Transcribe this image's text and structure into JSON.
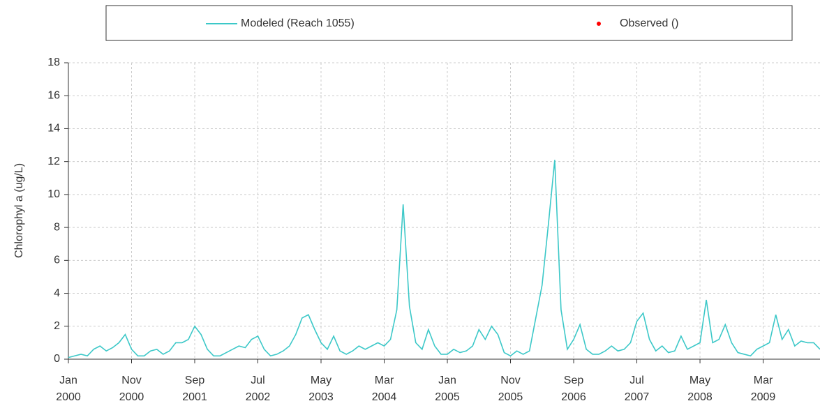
{
  "chart_data": {
    "type": "line",
    "ylabel": "Chlorophyl a (ug/L)",
    "x": [
      "2000-01",
      "2000-02",
      "2000-03",
      "2000-04",
      "2000-05",
      "2000-06",
      "2000-07",
      "2000-08",
      "2000-09",
      "2000-10",
      "2000-11",
      "2000-12",
      "2001-01",
      "2001-02",
      "2001-03",
      "2001-04",
      "2001-05",
      "2001-06",
      "2001-07",
      "2001-08",
      "2001-09",
      "2001-10",
      "2001-11",
      "2001-12",
      "2002-01",
      "2002-02",
      "2002-03",
      "2002-04",
      "2002-05",
      "2002-06",
      "2002-07",
      "2002-08",
      "2002-09",
      "2002-10",
      "2002-11",
      "2002-12",
      "2003-01",
      "2003-02",
      "2003-03",
      "2003-04",
      "2003-05",
      "2003-06",
      "2003-07",
      "2003-08",
      "2003-09",
      "2003-10",
      "2003-11",
      "2003-12",
      "2004-01",
      "2004-02",
      "2004-03",
      "2004-04",
      "2004-05",
      "2004-06",
      "2004-07",
      "2004-08",
      "2004-09",
      "2004-10",
      "2004-11",
      "2004-12",
      "2005-01",
      "2005-02",
      "2005-03",
      "2005-04",
      "2005-05",
      "2005-06",
      "2005-07",
      "2005-08",
      "2005-09",
      "2005-10",
      "2005-11",
      "2005-12",
      "2006-01",
      "2006-02",
      "2006-03",
      "2006-04",
      "2006-05",
      "2006-06",
      "2006-07",
      "2006-08",
      "2006-09",
      "2006-10",
      "2006-11",
      "2006-12",
      "2007-01",
      "2007-02",
      "2007-03",
      "2007-04",
      "2007-05",
      "2007-06",
      "2007-07",
      "2007-08",
      "2007-09",
      "2007-10",
      "2007-11",
      "2007-12",
      "2008-01",
      "2008-02",
      "2008-03",
      "2008-04",
      "2008-05",
      "2008-06",
      "2008-07",
      "2008-08",
      "2008-09",
      "2008-10",
      "2008-11",
      "2008-12",
      "2009-01",
      "2009-02",
      "2009-03",
      "2009-04",
      "2009-05",
      "2009-06",
      "2009-07",
      "2009-08",
      "2009-09",
      "2009-10",
      "2009-11",
      "2009-12"
    ],
    "series": [
      {
        "name": "Modeled (Reach 1055)",
        "color": "#3cc8c8",
        "values": [
          0.1,
          0.2,
          0.3,
          0.2,
          0.6,
          0.8,
          0.5,
          0.7,
          1.0,
          1.5,
          0.6,
          0.2,
          0.2,
          0.5,
          0.6,
          0.3,
          0.5,
          1.0,
          1.0,
          1.2,
          2.0,
          1.5,
          0.6,
          0.2,
          0.2,
          0.4,
          0.6,
          0.8,
          0.7,
          1.2,
          1.4,
          0.6,
          0.2,
          0.3,
          0.5,
          0.8,
          1.5,
          2.5,
          2.7,
          1.8,
          1.0,
          0.6,
          1.4,
          0.5,
          0.3,
          0.5,
          0.8,
          0.6,
          0.8,
          1.0,
          0.8,
          1.2,
          3.0,
          9.4,
          3.2,
          1.0,
          0.6,
          1.8,
          0.8,
          0.3,
          0.3,
          0.6,
          0.4,
          0.5,
          0.8,
          1.8,
          1.2,
          2.0,
          1.5,
          0.4,
          0.2,
          0.5,
          0.3,
          0.5,
          2.5,
          4.5,
          8.2,
          12.1,
          3.0,
          0.6,
          1.2,
          2.1,
          0.6,
          0.3,
          0.3,
          0.5,
          0.8,
          0.5,
          0.6,
          1.0,
          2.3,
          2.8,
          1.2,
          0.5,
          0.8,
          0.4,
          0.5,
          1.4,
          0.6,
          0.8,
          1.0,
          3.6,
          1.0,
          1.2,
          2.1,
          1.0,
          0.4,
          0.3,
          0.2,
          0.6,
          0.8,
          1.0,
          2.7,
          1.2,
          1.8,
          0.8,
          1.1,
          1.0,
          1.0,
          0.6
        ]
      },
      {
        "name": "Observed ()",
        "color": "#ff0000",
        "values": [
          null,
          null,
          null,
          null,
          null,
          null,
          null,
          null,
          null,
          null,
          null,
          null,
          null,
          null,
          null,
          null,
          null,
          null,
          null,
          null,
          null,
          null,
          null,
          null,
          null,
          null,
          null,
          null,
          null,
          null,
          null,
          null,
          null,
          null,
          null,
          null,
          null,
          null,
          null,
          null,
          null,
          null,
          null,
          null,
          null,
          null,
          null,
          null,
          null,
          null,
          null,
          null,
          null,
          null,
          null,
          null,
          null,
          null,
          null,
          null,
          null,
          null,
          null,
          null,
          null,
          null,
          null,
          null,
          null,
          null,
          null,
          null,
          null,
          null,
          null,
          null,
          null,
          null,
          null,
          null,
          null,
          null,
          null,
          null,
          null,
          null,
          null,
          null,
          null,
          null,
          null,
          null,
          null,
          null,
          null,
          null,
          null,
          null,
          null,
          null,
          null,
          null,
          null,
          null,
          null,
          null,
          null,
          null,
          null,
          null,
          null,
          null,
          null,
          null,
          null,
          null,
          null,
          null,
          null,
          null
        ]
      }
    ],
    "xlim": [
      "2000-01",
      "2009-12"
    ],
    "xticks": [
      {
        "value": "2000-01",
        "label": [
          "Jan",
          "2000"
        ]
      },
      {
        "value": "2000-11",
        "label": [
          "Nov",
          "2000"
        ]
      },
      {
        "value": "2001-09",
        "label": [
          "Sep",
          "2001"
        ]
      },
      {
        "value": "2002-07",
        "label": [
          "Jul",
          "2002"
        ]
      },
      {
        "value": "2003-05",
        "label": [
          "May",
          "2003"
        ]
      },
      {
        "value": "2004-03",
        "label": [
          "Mar",
          "2004"
        ]
      },
      {
        "value": "2005-01",
        "label": [
          "Jan",
          "2005"
        ]
      },
      {
        "value": "2005-11",
        "label": [
          "Nov",
          "2005"
        ]
      },
      {
        "value": "2006-09",
        "label": [
          "Sep",
          "2006"
        ]
      },
      {
        "value": "2007-07",
        "label": [
          "Jul",
          "2007"
        ]
      },
      {
        "value": "2008-05",
        "label": [
          "May",
          "2008"
        ]
      },
      {
        "value": "2009-03",
        "label": [
          "Mar",
          "2009"
        ]
      }
    ],
    "ylim": [
      0,
      18
    ],
    "yticks": [
      0,
      2,
      4,
      6,
      8,
      10,
      12,
      14,
      16,
      18
    ],
    "grid": true,
    "legend": "top"
  }
}
